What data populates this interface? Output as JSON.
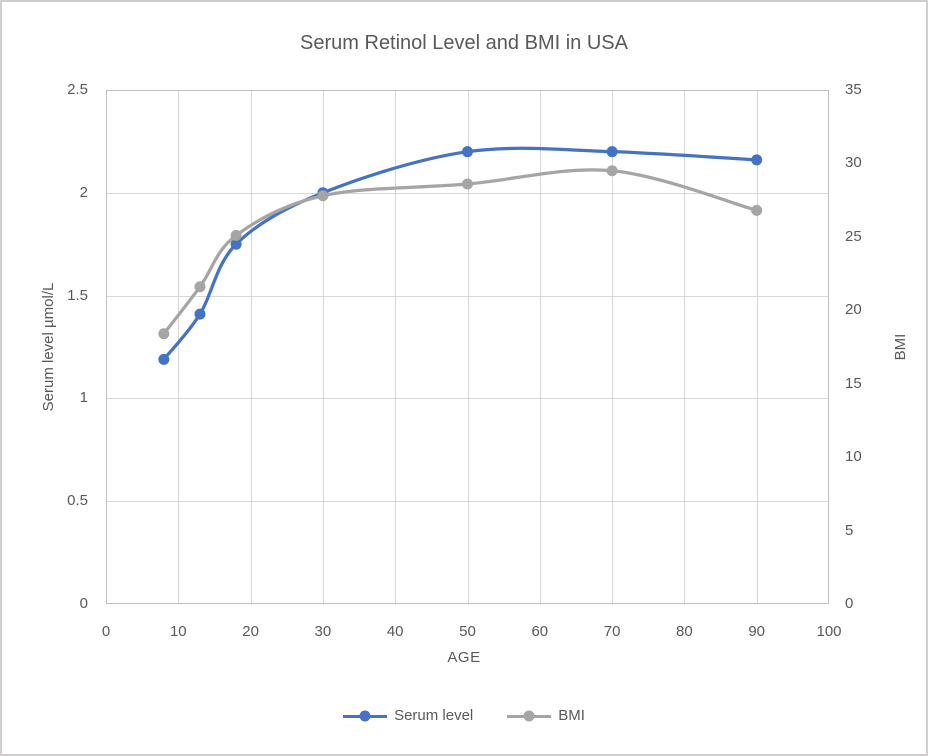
{
  "chart_data": {
    "type": "line",
    "title": "Serum Retinol Level and BMI in USA",
    "xlabel": "AGE",
    "ylabel_left": "Serum level µmol/L",
    "ylabel_right": "BMI",
    "x": [
      8,
      13,
      18,
      30,
      50,
      70,
      90
    ],
    "series": [
      {
        "name": "Serum level",
        "axis": "left",
        "color": "#4472C4",
        "values": [
          1.19,
          1.41,
          1.75,
          2.0,
          2.2,
          2.2,
          2.16
        ]
      },
      {
        "name": "BMI",
        "axis": "right",
        "color": "#A5A5A5",
        "values": [
          18.4,
          21.6,
          25.1,
          27.8,
          28.6,
          29.5,
          26.8
        ]
      }
    ],
    "x_axis": {
      "min": 0,
      "max": 100,
      "tick_labels": [
        "0",
        "10",
        "20",
        "30",
        "40",
        "50",
        "60",
        "70",
        "80",
        "90",
        "100"
      ]
    },
    "y_axis_left": {
      "min": 0,
      "max": 2.5,
      "tick_labels": [
        "0",
        "0.5",
        "1",
        "1.5",
        "2",
        "2.5"
      ]
    },
    "y_axis_right": {
      "min": 0,
      "max": 35,
      "tick_labels": [
        "0",
        "5",
        "10",
        "15",
        "20",
        "25",
        "30",
        "35"
      ]
    },
    "grid": true,
    "smooth_lines": true,
    "legend_position": "bottom",
    "colors": {
      "serum_line": "#4472C4",
      "bmi_line": "#A5A5A5",
      "gridline": "#D9D9D9",
      "plot_border": "#BFBFBF",
      "text": "#595959",
      "chart_border": "#D0CECE",
      "background": "#FFFFFF"
    }
  }
}
